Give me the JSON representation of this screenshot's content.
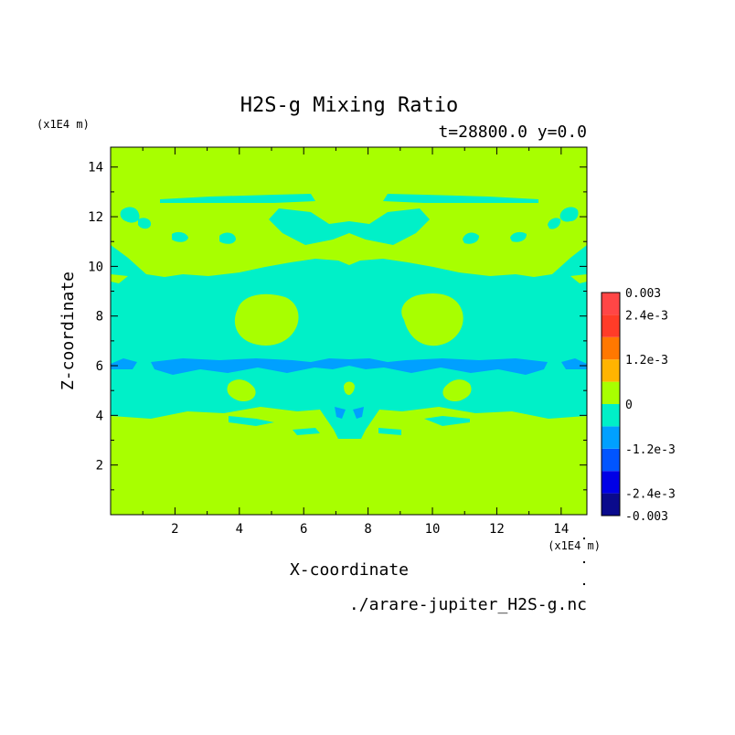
{
  "chart_data": {
    "type": "heatmap",
    "title": "H2S-g Mixing Ratio",
    "subtitle": "t=28800.0 y=0.0",
    "xlabel": "X-coordinate",
    "ylabel": "Z-coordinate",
    "x_unit": "(x1E4 m)",
    "y_unit": "(x1E4 m)",
    "xlim": [
      0,
      14.8
    ],
    "ylim": [
      0,
      14.8
    ],
    "x_ticks": [
      "2",
      "4",
      "6",
      "8",
      "10",
      "12",
      "14"
    ],
    "y_ticks": [
      "2",
      "4",
      "6",
      "8",
      "10",
      "12",
      "14"
    ],
    "footer": "./arare-jupiter_H2S-g.nc",
    "colorbar": {
      "labels": [
        "0.003",
        "2.4e-3",
        "1.2e-3",
        "0",
        "-1.2e-3",
        "-2.4e-3",
        "-0.003"
      ],
      "levels": [
        -0.003,
        -0.0024,
        -0.0018,
        -0.0012,
        -0.0006,
        0,
        0.0006,
        0.0012,
        0.0018,
        0.0024,
        0.003
      ],
      "colors": [
        "#0a0a8c",
        "#0000e6",
        "#0055ff",
        "#00a0ff",
        "#00f0c8",
        "#a8ff00",
        "#ffb400",
        "#ff7800",
        "#ff3c28",
        "#ff4646"
      ]
    },
    "field_levels": {
      "background": "#a8ff00",
      "negative_small": "#00f0c8",
      "negative_medium": "#00a0ff"
    }
  }
}
